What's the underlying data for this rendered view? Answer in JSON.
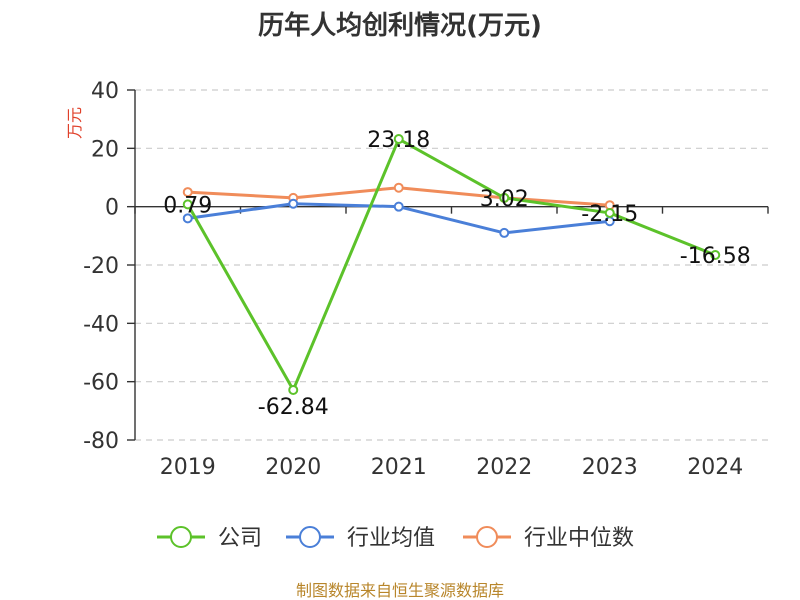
{
  "chart_data": {
    "type": "line",
    "title": "历年人均创利情况(万元)",
    "ylabel": "万元",
    "xlabel": "",
    "categories": [
      "2019",
      "2020",
      "2021",
      "2022",
      "2023",
      "2024"
    ],
    "ylim": [
      -80,
      40
    ],
    "yticks": [
      40,
      20,
      0,
      -20,
      -40,
      -60,
      -80
    ],
    "grid": true,
    "legend_position": "bottom",
    "series": [
      {
        "name": "公司",
        "color": "#5cc22a",
        "values": [
          0.79,
          -62.84,
          23.18,
          3.02,
          -2.15,
          -16.58
        ],
        "labels": [
          "0.79",
          "-62.84",
          "23.18",
          "3.02",
          "-2.15",
          "-16.58"
        ]
      },
      {
        "name": "行业均值",
        "color": "#4a7fd8",
        "values": [
          -4.0,
          1.0,
          0.0,
          -9.0,
          -5.0,
          null
        ]
      },
      {
        "name": "行业中位数",
        "color": "#f08c5a",
        "values": [
          5.0,
          3.0,
          6.5,
          3.0,
          0.5,
          null
        ]
      }
    ]
  },
  "footer": {
    "source": "制图数据来自恒生聚源数据库"
  }
}
